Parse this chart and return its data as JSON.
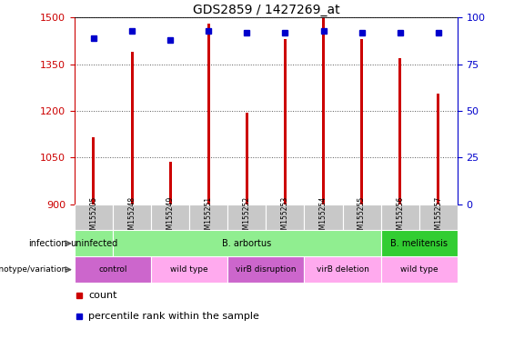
{
  "title": "GDS2859 / 1427269_at",
  "samples": [
    "GSM155205",
    "GSM155248",
    "GSM155249",
    "GSM155251",
    "GSM155252",
    "GSM155253",
    "GSM155254",
    "GSM155255",
    "GSM155256",
    "GSM155257"
  ],
  "counts": [
    1115,
    1390,
    1035,
    1480,
    1195,
    1430,
    1500,
    1430,
    1370,
    1255
  ],
  "percentile_ranks": [
    89,
    93,
    88,
    93,
    92,
    92,
    93,
    92,
    92,
    92
  ],
  "ylim_left": [
    900,
    1500
  ],
  "ylim_right": [
    0,
    100
  ],
  "yticks_left": [
    900,
    1050,
    1200,
    1350,
    1500
  ],
  "yticks_right": [
    0,
    25,
    50,
    75,
    100
  ],
  "bar_color": "#cc0000",
  "dot_color": "#0000cc",
  "bar_width": 0.07,
  "left_axis_color": "#cc0000",
  "right_axis_color": "#0000cc",
  "infection_label": "infection",
  "genotype_label": "genotype/variation",
  "legend_count_label": "count",
  "legend_percentile_label": "percentile rank within the sample",
  "inf_groups": [
    {
      "label": "uninfected",
      "cols": [
        0,
        1
      ],
      "color": "#90ee90"
    },
    {
      "label": "B. arbortus",
      "cols": [
        1,
        8
      ],
      "color": "#90ee90"
    },
    {
      "label": "B. melitensis",
      "cols": [
        8,
        10
      ],
      "color": "#32cd32"
    }
  ],
  "gen_groups": [
    {
      "label": "control",
      "cols": [
        0,
        2
      ],
      "color": "#cc66cc"
    },
    {
      "label": "wild type",
      "cols": [
        2,
        4
      ],
      "color": "#ffaaee"
    },
    {
      "label": "virB disruption",
      "cols": [
        4,
        6
      ],
      "color": "#cc66cc"
    },
    {
      "label": "virB deletion",
      "cols": [
        6,
        8
      ],
      "color": "#ffaaee"
    },
    {
      "label": "wild type",
      "cols": [
        8,
        10
      ],
      "color": "#ffaaee"
    }
  ],
  "sample_bg": "#c8c8c8"
}
